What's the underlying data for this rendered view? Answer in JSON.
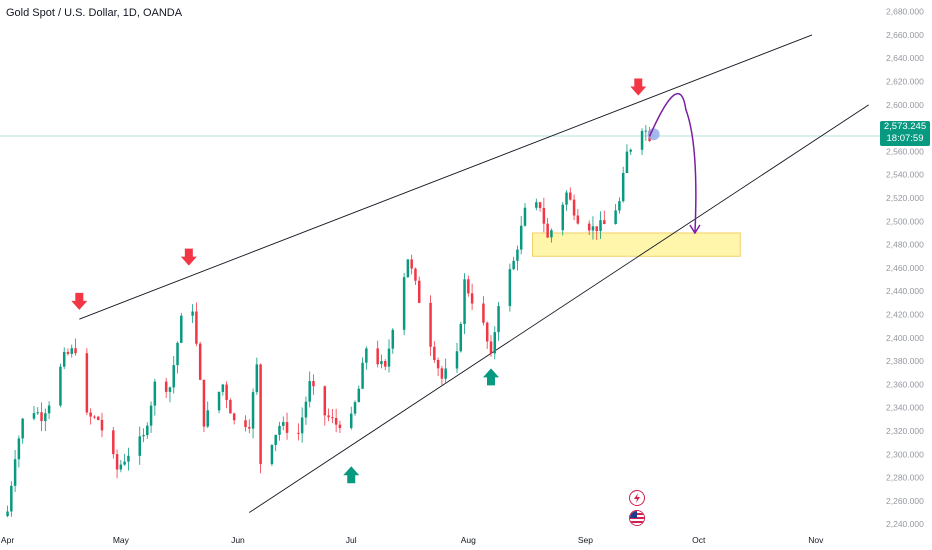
{
  "header": {
    "title": "Gold Spot / U.S. Dollar, 1D, OANDA"
  },
  "price_badge": {
    "price": "2,573.245",
    "countdown": "18:07:59",
    "color": "#089981"
  },
  "colors": {
    "up": "#089981",
    "down": "#f23645",
    "trendline": "#131722",
    "zone": "#fff59d",
    "projection": "#7b1fa2",
    "last_price_line": "#089981"
  },
  "icons": [
    "earnings-flash-icon",
    "us-flag-icon"
  ],
  "chart_data": {
    "type": "candlestick",
    "title": "Gold Spot / U.S. Dollar, 1D, OANDA",
    "ylim": [
      2235,
      2690
    ],
    "y_ticks": [
      2240,
      2260,
      2280,
      2300,
      2320,
      2340,
      2360,
      2380,
      2400,
      2420,
      2440,
      2460,
      2480,
      2500,
      2520,
      2540,
      2560,
      2580,
      2600,
      2620,
      2640,
      2660,
      2680
    ],
    "y_tick_labels": [
      "2,240.000",
      "2,260.000",
      "2,280.000",
      "2,300.000",
      "2,320.000",
      "2,340.000",
      "2,360.000",
      "2,380.000",
      "2,400.000",
      "2,420.000",
      "2,440.000",
      "2,460.000",
      "2,480.000",
      "2,500.000",
      "2,520.000",
      "2,540.000",
      "2,560.000",
      "2,580.000",
      "2,600.000",
      "2,620.000",
      "2,640.000",
      "2,660.000",
      "2,680.000"
    ],
    "x_ticks": [
      {
        "label": "Apr",
        "date": "2024-04-01"
      },
      {
        "label": "May",
        "date": "2024-05-01"
      },
      {
        "label": "Jun",
        "date": "2024-06-01"
      },
      {
        "label": "Jul",
        "date": "2024-07-01"
      },
      {
        "label": "Aug",
        "date": "2024-08-01"
      },
      {
        "label": "Sep",
        "date": "2024-09-01"
      },
      {
        "label": "Oct",
        "date": "2024-10-01"
      },
      {
        "label": "Nov",
        "date": "2024-11-01"
      }
    ],
    "xlim": [
      "2024-03-30",
      "2024-11-18"
    ],
    "last_price": 2573.245,
    "close_path": [
      [
        "2024-04-01",
        2251
      ],
      [
        "2024-04-03",
        2300
      ],
      [
        "2024-04-05",
        2329
      ],
      [
        "2024-04-08",
        2338
      ],
      [
        "2024-04-10",
        2333
      ],
      [
        "2024-04-12",
        2345
      ],
      [
        "2024-04-16",
        2383
      ],
      [
        "2024-04-19",
        2391
      ],
      [
        "2024-04-22",
        2332
      ],
      [
        "2024-04-25",
        2330
      ],
      [
        "2024-04-30",
        2287
      ],
      [
        "2024-05-03",
        2301
      ],
      [
        "2024-05-07",
        2314
      ],
      [
        "2024-05-10",
        2360
      ],
      [
        "2024-05-14",
        2358
      ],
      [
        "2024-05-17",
        2415
      ],
      [
        "2024-05-20",
        2426
      ],
      [
        "2024-05-23",
        2328
      ],
      [
        "2024-05-28",
        2360
      ],
      [
        "2024-05-31",
        2328
      ],
      [
        "2024-06-04",
        2327
      ],
      [
        "2024-06-06",
        2375
      ],
      [
        "2024-06-07",
        2293
      ],
      [
        "2024-06-12",
        2325
      ],
      [
        "2024-06-17",
        2318
      ],
      [
        "2024-06-20",
        2360
      ],
      [
        "2024-06-24",
        2334
      ],
      [
        "2024-06-27",
        2326
      ],
      [
        "2024-07-01",
        2330
      ],
      [
        "2024-07-03",
        2356
      ],
      [
        "2024-07-05",
        2392
      ],
      [
        "2024-07-10",
        2372
      ],
      [
        "2024-07-12",
        2411
      ],
      [
        "2024-07-16",
        2469
      ],
      [
        "2024-07-18",
        2445
      ],
      [
        "2024-07-22",
        2396
      ],
      [
        "2024-07-25",
        2365
      ],
      [
        "2024-07-29",
        2384
      ],
      [
        "2024-07-31",
        2448
      ],
      [
        "2024-08-05",
        2410
      ],
      [
        "2024-08-07",
        2382
      ],
      [
        "2024-08-09",
        2431
      ],
      [
        "2024-08-13",
        2465
      ],
      [
        "2024-08-16",
        2508
      ],
      [
        "2024-08-20",
        2514
      ],
      [
        "2024-08-22",
        2485
      ],
      [
        "2024-08-27",
        2524
      ],
      [
        "2024-08-30",
        2503
      ],
      [
        "2024-09-03",
        2494
      ],
      [
        "2024-09-06",
        2497
      ],
      [
        "2024-09-10",
        2516
      ],
      [
        "2024-09-12",
        2558
      ],
      [
        "2024-09-16",
        2582
      ],
      [
        "2024-09-18",
        2573
      ]
    ],
    "trendlines": {
      "upper": [
        [
          "2024-04-20",
          2416
        ],
        [
          "2024-10-31",
          2660
        ]
      ],
      "lower": [
        [
          "2024-06-04",
          2250
        ],
        [
          "2024-11-15",
          2600
        ]
      ]
    },
    "zone": {
      "x": [
        "2024-08-18",
        "2024-10-12"
      ],
      "y": [
        2470,
        2490
      ]
    },
    "projection": [
      [
        "2024-09-18",
        2573
      ],
      [
        "2024-09-26",
        2596
      ],
      [
        "2024-09-30",
        2490
      ]
    ],
    "markers": {
      "down_arrows": [
        [
          "2024-04-20",
          2430
        ],
        [
          "2024-05-19",
          2468
        ],
        [
          "2024-09-15",
          2614
        ]
      ],
      "up_arrows": [
        [
          "2024-07-01",
          2282
        ],
        [
          "2024-08-07",
          2366
        ]
      ]
    }
  }
}
